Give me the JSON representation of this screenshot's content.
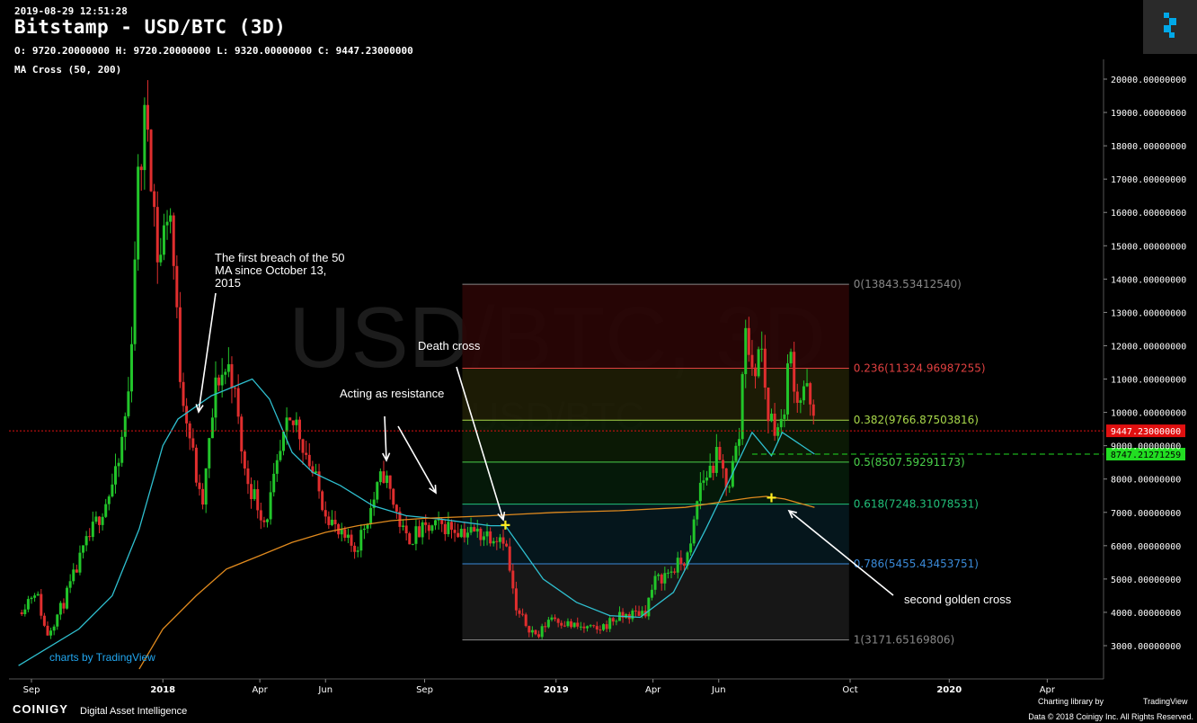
{
  "header": {
    "timestamp": "2019-08-29 12:51:28",
    "title": "Bitstamp - USD/BTC (3D)",
    "ohlc": "O: 9720.20000000 H: 9720.20000000 L: 9320.00000000 C: 9447.23000000",
    "indicator": "MA Cross (50, 200)"
  },
  "watermark": {
    "main": "USD/BTC, 3D",
    "sub": "USD/BTC"
  },
  "tv_credit": "charts by TradingView",
  "footer": {
    "brand": "COINIGY",
    "tagline": "Digital Asset Intelligence",
    "charting": "Charting library by",
    "tv": "TradingView",
    "data": "Data © 2018 Coinigy Inc. All Rights Reserved."
  },
  "colors": {
    "up": "#22c52a",
    "down": "#e02e2e",
    "ma50": "#2fc0d0",
    "ma200": "#e08a1e",
    "last_price": "#e01010",
    "ma_tag": "#22dd22"
  },
  "chart_data": {
    "type": "candlestick",
    "title": "Bitstamp - USD/BTC (3D)",
    "xlabel": "",
    "ylabel": "",
    "ylim": [
      2200,
      20600
    ],
    "x_tick_labels": [
      "Sep",
      "2018",
      "Apr",
      "Jun",
      "Sep",
      "2019",
      "Apr",
      "Jun",
      "Oct",
      "2020",
      "Apr"
    ],
    "y_tick_labels": [
      "3000.00000000",
      "4000.00000000",
      "5000.00000000",
      "6000.00000000",
      "7000.00000000",
      "8000.00000000",
      "9000.00000000",
      "10000.00000000",
      "11000.00000000",
      "12000.00000000",
      "13000.00000000",
      "14000.00000000",
      "15000.00000000",
      "16000.00000000",
      "17000.00000000",
      "18000.00000000",
      "19000.00000000",
      "20000.00000000"
    ],
    "price_path": [
      [
        "2017-08-20",
        4000
      ],
      [
        "2017-09-05",
        4700
      ],
      [
        "2017-09-15",
        3300
      ],
      [
        "2017-10-01",
        4300
      ],
      [
        "2017-10-20",
        5900
      ],
      [
        "2017-11-10",
        7400
      ],
      [
        "2017-11-20",
        8200
      ],
      [
        "2017-12-01",
        10800
      ],
      [
        "2017-12-08",
        16500
      ],
      [
        "2017-12-17",
        19200
      ],
      [
        "2017-12-28",
        14300
      ],
      [
        "2018-01-07",
        16500
      ],
      [
        "2018-01-17",
        11200
      ],
      [
        "2018-02-06",
        7000
      ],
      [
        "2018-02-20",
        11000
      ],
      [
        "2018-03-05",
        11400
      ],
      [
        "2018-03-18",
        8200
      ],
      [
        "2018-04-06",
        6700
      ],
      [
        "2018-04-25",
        9400
      ],
      [
        "2018-05-05",
        9700
      ],
      [
        "2018-05-28",
        7400
      ],
      [
        "2018-06-13",
        6300
      ],
      [
        "2018-06-29",
        5900
      ],
      [
        "2018-07-25",
        8200
      ],
      [
        "2018-08-14",
        6200
      ],
      [
        "2018-09-05",
        6500
      ],
      [
        "2018-09-20",
        6600
      ],
      [
        "2018-10-15",
        6400
      ],
      [
        "2018-11-14",
        6300
      ],
      [
        "2018-11-25",
        4000
      ],
      [
        "2018-12-15",
        3250
      ],
      [
        "2018-12-27",
        3900
      ],
      [
        "2019-01-15",
        3600
      ],
      [
        "2019-02-08",
        3450
      ],
      [
        "2019-02-24",
        3800
      ],
      [
        "2019-03-25",
        4050
      ],
      [
        "2019-04-02",
        4900
      ],
      [
        "2019-04-20",
        5300
      ],
      [
        "2019-05-05",
        5700
      ],
      [
        "2019-05-14",
        7800
      ],
      [
        "2019-05-30",
        8600
      ],
      [
        "2019-06-10",
        7800
      ],
      [
        "2019-06-20",
        9300
      ],
      [
        "2019-06-26",
        12900
      ],
      [
        "2019-07-02",
        11000
      ],
      [
        "2019-07-10",
        12100
      ],
      [
        "2019-07-17",
        9900
      ],
      [
        "2019-07-29",
        9500
      ],
      [
        "2019-08-06",
        11800
      ],
      [
        "2019-08-14",
        10300
      ],
      [
        "2019-08-20",
        10900
      ],
      [
        "2019-08-29",
        9447.23
      ]
    ],
    "ma50_points": [
      [
        "2017-08-20",
        2400
      ],
      [
        "2017-10-15",
        3500
      ],
      [
        "2017-11-15",
        4500
      ],
      [
        "2017-12-10",
        6500
      ],
      [
        "2018-01-01",
        9000
      ],
      [
        "2018-01-15",
        9800
      ],
      [
        "2018-02-15",
        10500
      ],
      [
        "2018-03-10",
        10800
      ],
      [
        "2018-03-25",
        11000
      ],
      [
        "2018-04-10",
        10400
      ],
      [
        "2018-05-01",
        8800
      ],
      [
        "2018-05-20",
        8200
      ],
      [
        "2018-06-15",
        7800
      ],
      [
        "2018-07-15",
        7200
      ],
      [
        "2018-08-15",
        6900
      ],
      [
        "2018-09-15",
        6800
      ],
      [
        "2018-11-01",
        6600
      ],
      [
        "2018-11-15",
        6600
      ],
      [
        "2018-12-20",
        5000
      ],
      [
        "2019-01-20",
        4300
      ],
      [
        "2019-02-20",
        3900
      ],
      [
        "2019-03-20",
        3850
      ],
      [
        "2019-04-20",
        4600
      ],
      [
        "2019-05-20",
        6500
      ],
      [
        "2019-06-10",
        7900
      ],
      [
        "2019-07-02",
        9400
      ],
      [
        "2019-07-20",
        8700
      ],
      [
        "2019-07-30",
        9400
      ],
      [
        "2019-08-29",
        8747.21
      ]
    ],
    "ma200_points": [
      [
        "2017-12-10",
        2300
      ],
      [
        "2018-01-01",
        3500
      ],
      [
        "2018-02-01",
        4500
      ],
      [
        "2018-03-01",
        5300
      ],
      [
        "2018-04-01",
        5700
      ],
      [
        "2018-05-01",
        6100
      ],
      [
        "2018-06-01",
        6400
      ],
      [
        "2018-07-01",
        6600
      ],
      [
        "2018-08-01",
        6750
      ],
      [
        "2018-09-01",
        6820
      ],
      [
        "2018-10-01",
        6860
      ],
      [
        "2018-11-01",
        6900
      ],
      [
        "2018-12-01",
        6950
      ],
      [
        "2019-01-01",
        7000
      ],
      [
        "2019-03-01",
        7050
      ],
      [
        "2019-05-01",
        7150
      ],
      [
        "2019-06-01",
        7300
      ],
      [
        "2019-07-01",
        7440
      ],
      [
        "2019-07-15",
        7480
      ],
      [
        "2019-08-01",
        7400
      ],
      [
        "2019-08-29",
        7150
      ]
    ],
    "fib_levels": [
      {
        "ratio": 0,
        "price": 13843.5341254,
        "label": "0(13843.53412540)",
        "color": "#888888",
        "fill": "#2a0505"
      },
      {
        "ratio": 0.236,
        "price": 11324.96987255,
        "label": "0.236(11324.96987255)",
        "color": "#e04040",
        "fill": "#1f1e05"
      },
      {
        "ratio": 0.382,
        "price": 9766.87503816,
        "label": "0.382(9766.87503816)",
        "color": "#a8d84a",
        "fill": "#0c1c05"
      },
      {
        "ratio": 0.5,
        "price": 8507.59291173,
        "label": "0.5(8507.59291173)",
        "color": "#4ad04a",
        "fill": "#051c0a"
      },
      {
        "ratio": 0.618,
        "price": 7248.31078531,
        "label": "0.618(7248.31078531)",
        "color": "#22c07a",
        "fill": "#05181f"
      },
      {
        "ratio": 0.786,
        "price": 5455.43453751,
        "label": "0.786(5455.43453751)",
        "color": "#3a8ad8",
        "fill": "#1a1a1a"
      },
      {
        "ratio": 1,
        "price": 3171.65169806,
        "label": "1(3171.65169806)",
        "color": "#888888"
      }
    ],
    "fib_range": {
      "start": "2018-10-06",
      "end": "2019-09-30"
    },
    "last_price": 9447.23,
    "last_price_label": "9447.23000000",
    "ma_value_label": "8747.21271259",
    "ma_value": 8747.21,
    "cross_markers": [
      {
        "date": "2018-11-15",
        "price": 6620
      },
      {
        "date": "2019-07-20",
        "price": 7440
      }
    ],
    "annotations": [
      {
        "text": "The first breach of the 50 MA since October 13, 2015",
        "lines": [
          "The first breach of the 50",
          "MA since October 13,",
          "2015"
        ]
      },
      {
        "text": "Death cross"
      },
      {
        "text": "Acting as resistance"
      },
      {
        "text": "second golden cross"
      }
    ]
  }
}
